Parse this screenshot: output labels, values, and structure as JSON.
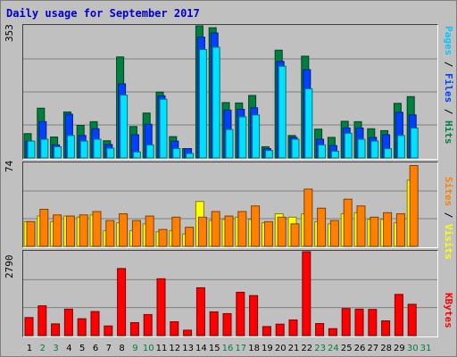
{
  "title": "Daily usage for September 2017",
  "colors": {
    "background": "#c0c0c0",
    "hits": "#008040",
    "files": "#0040ff",
    "pages": "#00e0ff",
    "visits": "#ffff00",
    "sites": "#ff8000",
    "kbytes": "#ff0000",
    "weekday_label": "#000000",
    "weekend_label": "#008040"
  },
  "legend": {
    "top": [
      {
        "text": "Pages",
        "color": "#00c8ff"
      },
      {
        "text": " / ",
        "color": "#000000"
      },
      {
        "text": "Files",
        "color": "#0040ff"
      },
      {
        "text": " / ",
        "color": "#000000"
      },
      {
        "text": "Hits",
        "color": "#008040"
      }
    ],
    "middle": [
      {
        "text": "Sites",
        "color": "#ff8000"
      },
      {
        "text": " / ",
        "color": "#000000"
      },
      {
        "text": "Visits",
        "color": "#ffff00"
      }
    ],
    "bottom": [
      {
        "text": "KBytes",
        "color": "#ff0000"
      }
    ]
  },
  "chart_data": [
    {
      "type": "bar",
      "title": "Daily usage for September 2017",
      "panel": "hits-files-pages",
      "ymax_label": "353",
      "ylim": [
        0,
        353
      ],
      "categories": [
        "1",
        "2",
        "3",
        "4",
        "5",
        "6",
        "7",
        "8",
        "9",
        "10",
        "11",
        "12",
        "13",
        "14",
        "15",
        "16",
        "17",
        "18",
        "19",
        "20",
        "21",
        "22",
        "23",
        "24",
        "25",
        "26",
        "27",
        "28",
        "29",
        "30",
        "31"
      ],
      "series": [
        {
          "name": "Hits",
          "values": [
            65,
            133,
            56,
            123,
            87,
            97,
            46,
            270,
            84,
            120,
            176,
            57,
            25,
            353,
            348,
            148,
            147,
            167,
            30,
            288,
            60,
            272,
            77,
            55,
            98,
            97,
            78,
            73,
            146,
            164,
            0
          ]
        },
        {
          "name": "Files",
          "values": [
            45,
            97,
            35,
            117,
            60,
            78,
            36,
            198,
            62,
            90,
            166,
            45,
            25,
            323,
            334,
            128,
            130,
            134,
            25,
            258,
            55,
            236,
            50,
            33,
            80,
            80,
            55,
            62,
            122,
            115,
            0
          ]
        },
        {
          "name": "Pages",
          "values": [
            45,
            50,
            30,
            60,
            45,
            50,
            26,
            168,
            16,
            35,
            157,
            25,
            12,
            290,
            296,
            76,
            110,
            115,
            20,
            245,
            50,
            185,
            35,
            18,
            66,
            50,
            45,
            25,
            60,
            80,
            0
          ]
        }
      ]
    },
    {
      "type": "bar",
      "panel": "visits-sites",
      "ymax_label": "74",
      "ylim": [
        0,
        74
      ],
      "categories": [
        "1",
        "2",
        "3",
        "4",
        "5",
        "6",
        "7",
        "8",
        "9",
        "10",
        "11",
        "12",
        "13",
        "14",
        "15",
        "16",
        "17",
        "18",
        "19",
        "20",
        "21",
        "22",
        "23",
        "24",
        "25",
        "26",
        "27",
        "28",
        "29",
        "30",
        "31"
      ],
      "series": [
        {
          "name": "Visits",
          "values": [
            22,
            27,
            22,
            27,
            26,
            28,
            14,
            21,
            14,
            20,
            13,
            14,
            11,
            40,
            23,
            24,
            26,
            24,
            21,
            29,
            26,
            29,
            22,
            20,
            29,
            30,
            24,
            24,
            21,
            59,
            0
          ]
        },
        {
          "name": "Sites",
          "values": [
            22,
            33,
            28,
            27,
            28,
            31,
            23,
            29,
            23,
            27,
            15,
            26,
            17,
            26,
            31,
            27,
            31,
            36,
            22,
            26,
            20,
            51,
            34,
            23,
            42,
            36,
            26,
            30,
            29,
            72,
            0
          ]
        }
      ]
    },
    {
      "type": "bar",
      "panel": "kbytes",
      "ymax_label": "2790",
      "ylim": [
        0,
        2790
      ],
      "categories": [
        "1",
        "2",
        "3",
        "4",
        "5",
        "6",
        "7",
        "8",
        "9",
        "10",
        "11",
        "12",
        "13",
        "14",
        "15",
        "16",
        "17",
        "18",
        "19",
        "20",
        "21",
        "22",
        "23",
        "24",
        "25",
        "26",
        "27",
        "28",
        "29",
        "30",
        "31"
      ],
      "series": [
        {
          "name": "KBytes",
          "values": [
            600,
            990,
            390,
            880,
            560,
            800,
            320,
            2230,
            430,
            700,
            1890,
            460,
            180,
            1590,
            790,
            730,
            1440,
            1330,
            300,
            380,
            520,
            2790,
            400,
            230,
            900,
            880,
            870,
            490,
            1370,
            1040,
            0
          ]
        }
      ]
    }
  ],
  "weekend_days": [
    2,
    3,
    9,
    10,
    16,
    17,
    23,
    24,
    30,
    31
  ]
}
